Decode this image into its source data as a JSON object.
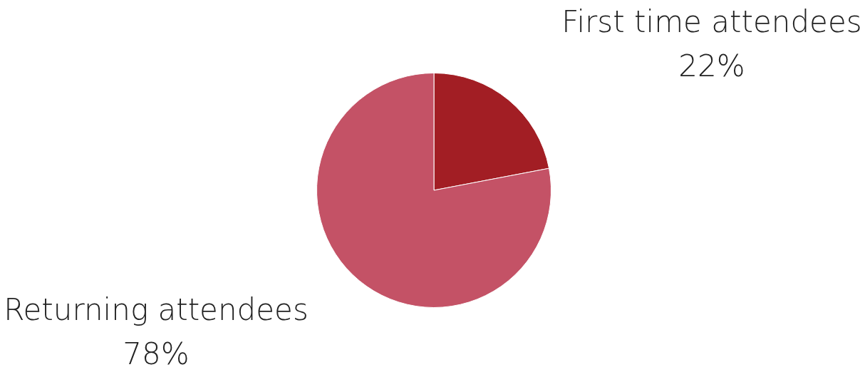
{
  "chart_data": {
    "type": "pie",
    "categories": [
      "First time attendees",
      "Returning attendees"
    ],
    "values": [
      22,
      78
    ],
    "colors": [
      "#a21e24",
      "#c45266"
    ],
    "value_labels": [
      "22%",
      "78%"
    ],
    "legend": false
  }
}
